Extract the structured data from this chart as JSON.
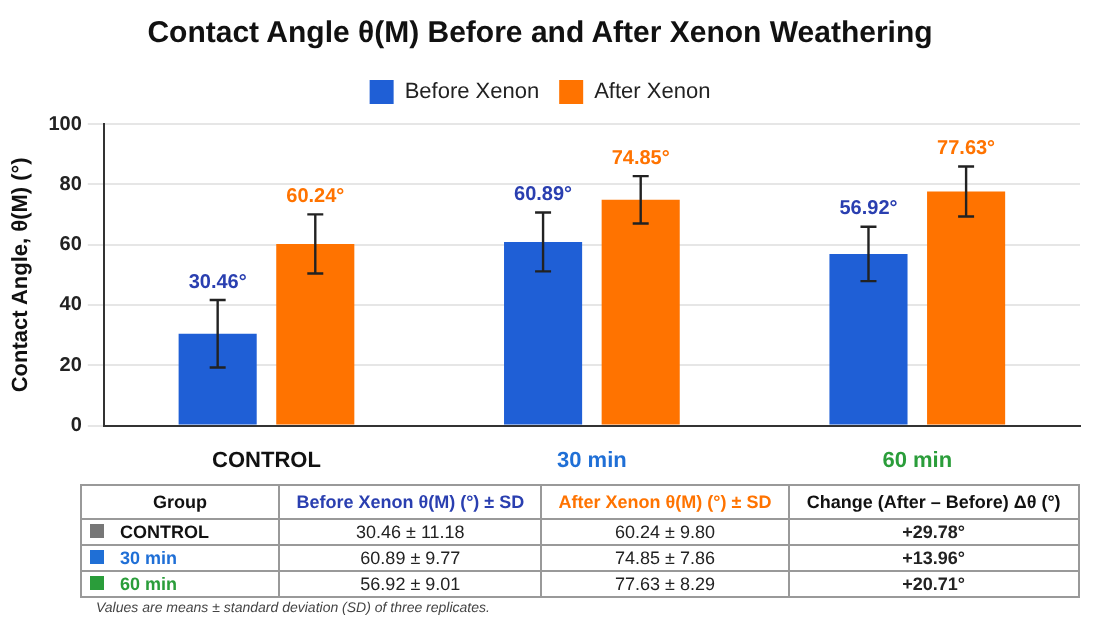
{
  "chart_data": {
    "type": "bar",
    "title": "Contact Angle θ(M) Before and After Xenon Weathering",
    "ylabel": "Contact Angle, θ(M) (°)",
    "categories": [
      "CONTROL",
      "30 min",
      "60 min"
    ],
    "series": [
      {
        "name": "Before Xenon",
        "color": "#1f5fd6",
        "values": [
          30.46,
          60.89,
          56.92
        ],
        "errors": [
          11.18,
          9.77,
          9.01
        ],
        "value_labels": [
          "30.46°",
          "60.89°",
          "56.92°"
        ]
      },
      {
        "name": "After Xenon",
        "color": "#ff7300",
        "values": [
          60.24,
          74.85,
          77.63
        ],
        "errors": [
          9.8,
          7.86,
          8.29
        ],
        "value_labels": [
          "60.24°",
          "74.85°",
          "77.63°"
        ]
      }
    ],
    "ylim": [
      0,
      100
    ],
    "yticks": [
      0,
      20,
      40,
      60,
      80,
      100
    ],
    "grid": "y",
    "legend": "top",
    "annotations": [
      "Group",
      "Before Xenon θ(M) (°)  ± SD",
      "After Xenon θ(M) (°)  ± SD",
      "Change (After – Before) Δθ (°)",
      "30.46 ± 11.18",
      "60.24 ± 9.80",
      "+29.78°",
      "60.89 ± 9.77",
      "74.85 ± 7.86",
      "+13.96°",
      "56.92 ± 9.01",
      "77.63 ± 8.29",
      "+20.71°",
      "Values are means ± standard deviation (SD) of three replicates."
    ]
  }
}
